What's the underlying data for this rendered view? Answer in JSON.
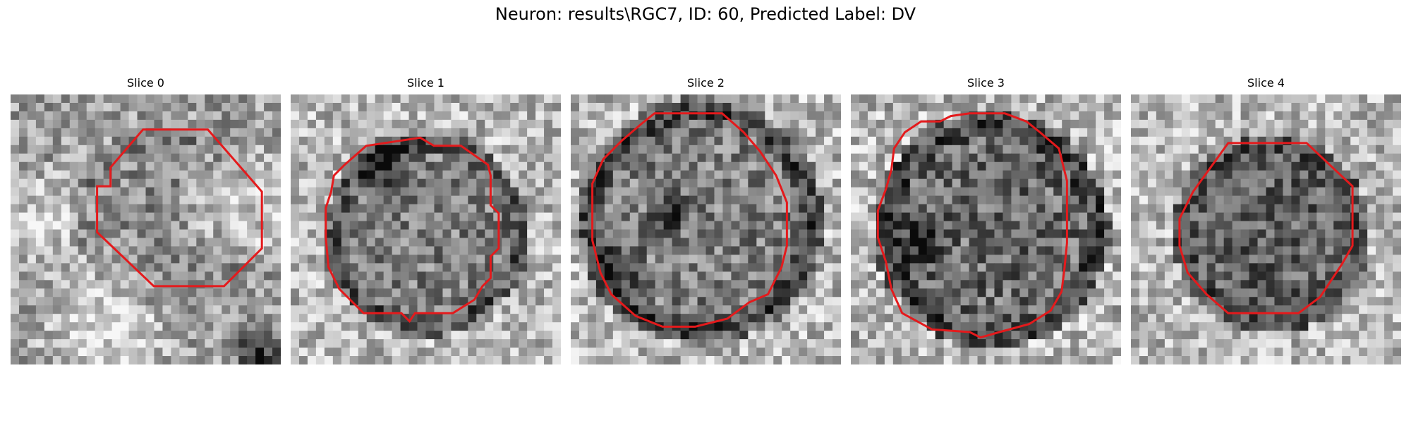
{
  "figure": {
    "title": "Neuron: results\\RGC7, ID: 60, Predicted Label: DV"
  },
  "panels": [
    {
      "title": "Slice 0"
    },
    {
      "title": "Slice 1"
    },
    {
      "title": "Slice 2"
    },
    {
      "title": "Slice 3"
    },
    {
      "title": "Slice 4"
    }
  ],
  "colors": {
    "contour": "#e41a1c",
    "background": "#ffffff"
  }
}
